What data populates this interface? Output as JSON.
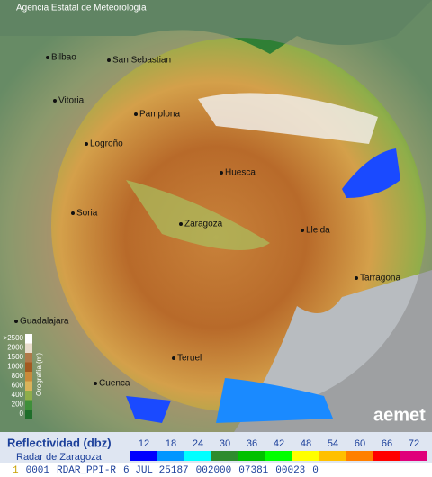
{
  "header": {
    "title": "Agencia Estatal de Meteorología"
  },
  "cities": [
    {
      "label": "Bilbao"
    },
    {
      "label": "San Sebastian"
    },
    {
      "label": "Vitoria"
    },
    {
      "label": "Pamplona"
    },
    {
      "label": "Logroño"
    },
    {
      "label": "Huesca"
    },
    {
      "label": "Soria"
    },
    {
      "label": "Zaragoza"
    },
    {
      "label": "Lleida"
    },
    {
      "label": "Tarragona"
    },
    {
      "label": "Guadalajara"
    },
    {
      "label": "Teruel"
    },
    {
      "label": "Cuenca"
    }
  ],
  "orography": {
    "title": "Orografía (m)",
    "levels": [
      ">2500",
      "2000",
      "1500",
      "1000",
      "800",
      "600",
      "400",
      "200",
      "0"
    ],
    "colors": [
      "#ffffff",
      "#e8dccc",
      "#b07a4a",
      "#a35a20",
      "#c98a3a",
      "#d9b35a",
      "#8fae4a",
      "#3f8f3a",
      "#1f6e2a"
    ]
  },
  "legend": {
    "title": "Reflectividad (dbz)",
    "subtitle": "Radar de Zaragoza",
    "scale": [
      12,
      18,
      24,
      30,
      36,
      42,
      48,
      54,
      60,
      66,
      72
    ],
    "colors": [
      "#0000ff",
      "#0096ff",
      "#00ffff",
      "#2e8b2e",
      "#00c000",
      "#00ff00",
      "#ffff00",
      "#ffc000",
      "#ff8000",
      "#ff0000",
      "#e0007a"
    ]
  },
  "logo": "aemet",
  "status": [
    "1",
    "0001",
    "RDAR_PPI-R",
    "6 JUL 25187",
    "002000",
    "07381",
    "00023",
    "0"
  ]
}
